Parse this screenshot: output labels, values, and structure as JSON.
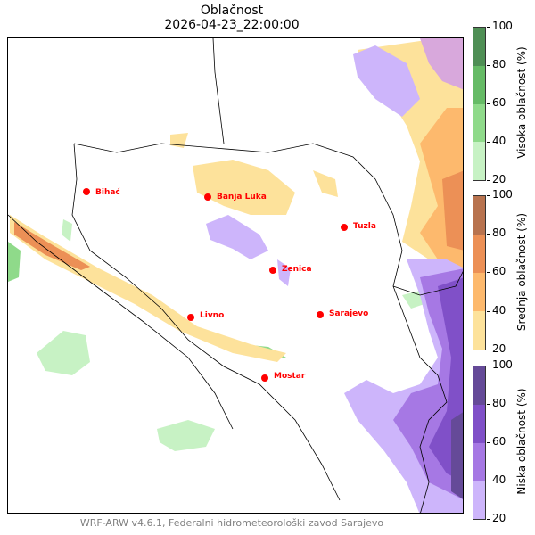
{
  "title": "Oblačnost",
  "subtitle": "2026-04-23_22:00:00",
  "footer": "WRF-ARW v4.6.1, Federalni hidrometeorološki zavod Sarajevo",
  "cities": [
    {
      "name": "Bihać"
    },
    {
      "name": "Banja Luka"
    },
    {
      "name": "Tuzla"
    },
    {
      "name": "Zenica"
    },
    {
      "name": "Livno"
    },
    {
      "name": "Sarajevo"
    },
    {
      "name": "Mostar"
    }
  ],
  "colorbars": [
    {
      "label": "Visoka oblačnost (%)",
      "ticks": [
        "20",
        "40",
        "60",
        "80",
        "100"
      ],
      "colors": [
        "#c7f2c4",
        "#8fda8a",
        "#66bb66",
        "#4f8f55"
      ]
    },
    {
      "label": "Srednja oblačnost (%)",
      "ticks": [
        "20",
        "40",
        "60",
        "80",
        "100"
      ],
      "colors": [
        "#fde29b",
        "#fdb96d",
        "#ec9056",
        "#b8734f"
      ]
    },
    {
      "label": "Niska oblačnost (%)",
      "ticks": [
        "20",
        "40",
        "60",
        "80",
        "100"
      ],
      "colors": [
        "#cdb5fb",
        "#a678e4",
        "#8050c8",
        "#654a98"
      ]
    }
  ]
}
